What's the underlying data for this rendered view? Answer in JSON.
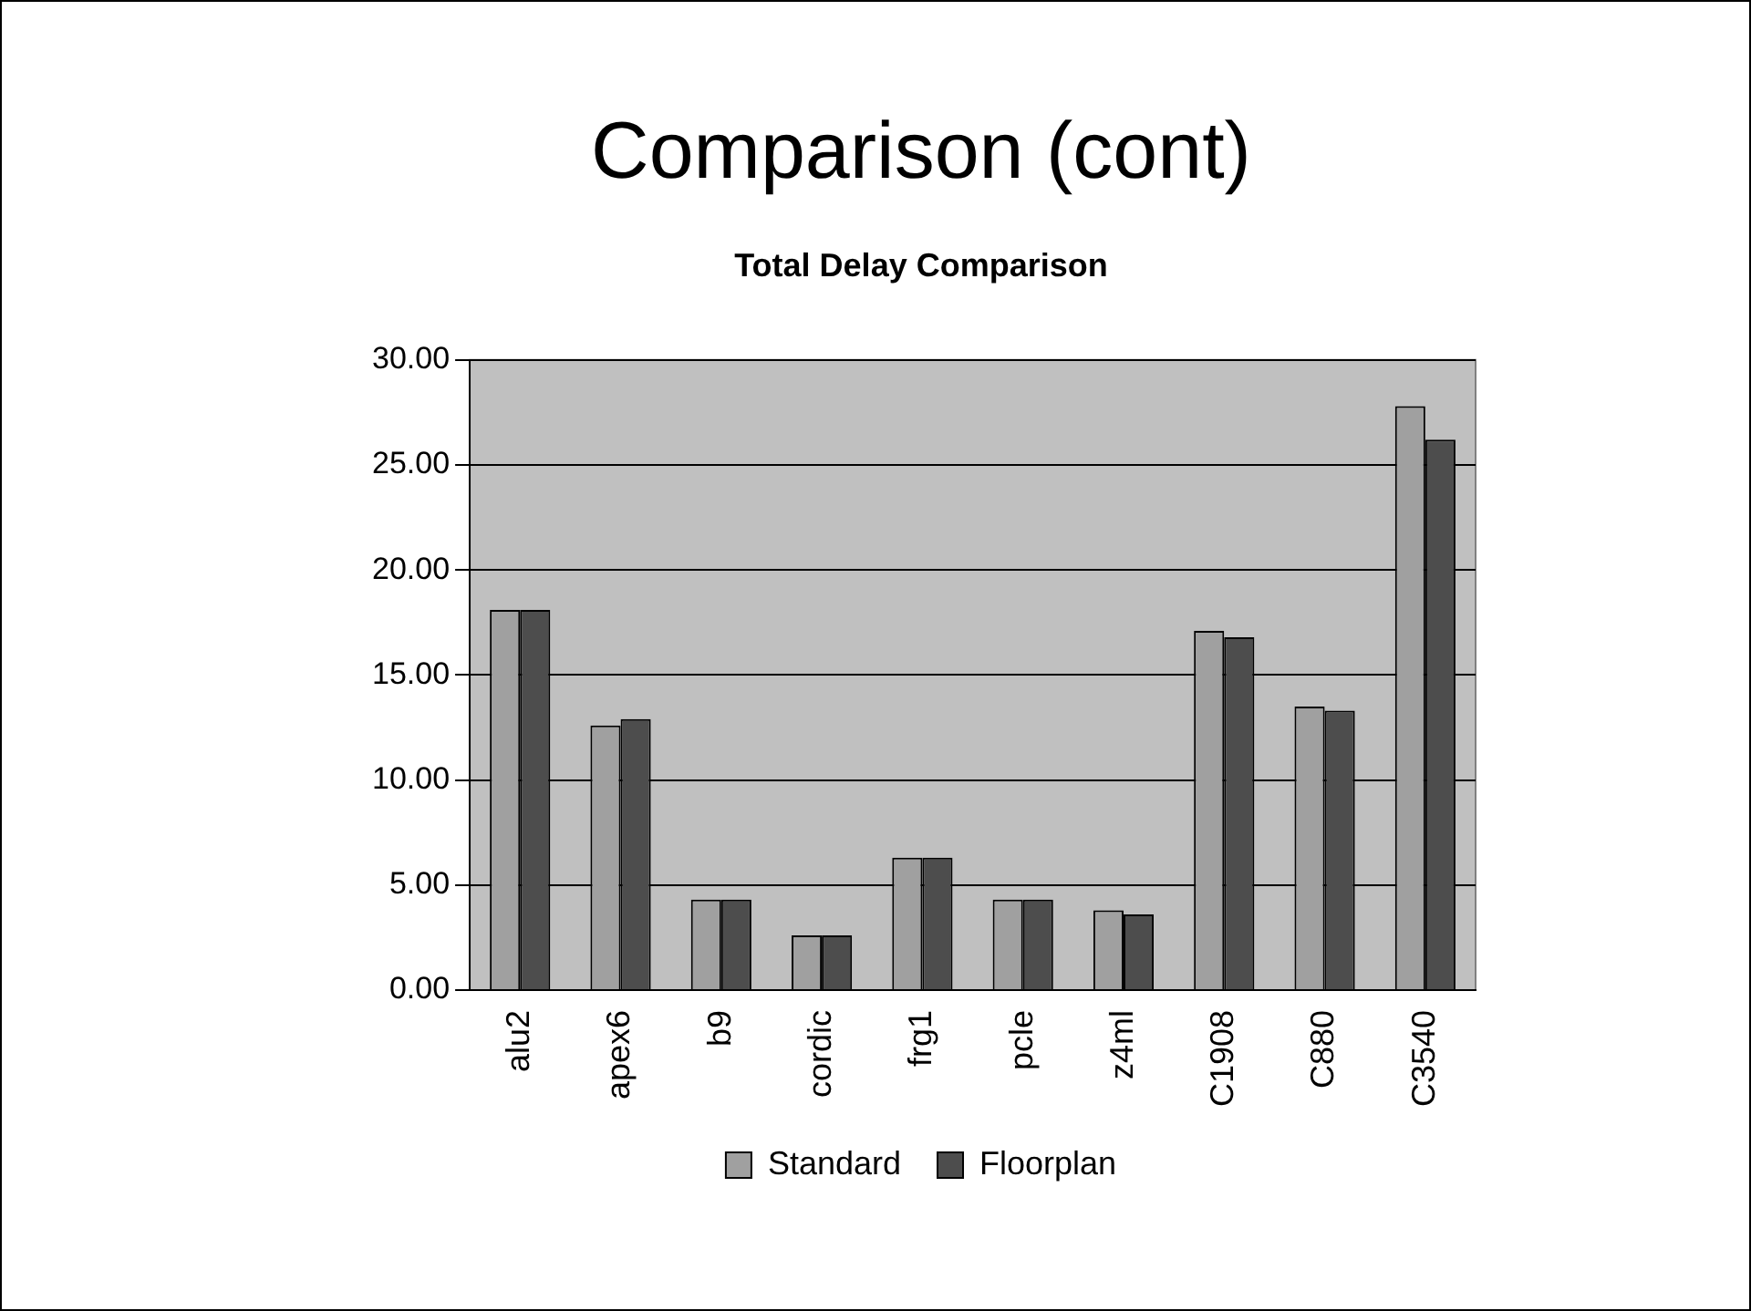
{
  "chart_data": {
    "type": "bar",
    "title": "Comparison (cont)",
    "subtitle": "Total Delay Comparison",
    "categories": [
      "alu2",
      "apex6",
      "b9",
      "cordic",
      "frg1",
      "pcle",
      "z4ml",
      "C1908",
      "C880",
      "C3540"
    ],
    "series": [
      {
        "name": "Standard",
        "color": "#a0a0a0",
        "values": [
          18.1,
          12.6,
          4.3,
          2.6,
          6.3,
          4.3,
          3.8,
          17.1,
          13.5,
          27.8
        ]
      },
      {
        "name": "Floorplan",
        "color": "#4d4d4d",
        "values": [
          18.1,
          12.9,
          4.3,
          2.6,
          6.3,
          4.3,
          3.6,
          16.8,
          13.3,
          26.2
        ]
      }
    ],
    "ylim": [
      0,
      30
    ],
    "yticks": [
      {
        "value": 0,
        "label": "0.00"
      },
      {
        "value": 5,
        "label": "5.00"
      },
      {
        "value": 10,
        "label": "10.00"
      },
      {
        "value": 15,
        "label": "15.00"
      },
      {
        "value": 20,
        "label": "20.00"
      },
      {
        "value": 25,
        "label": "25.00"
      },
      {
        "value": 30,
        "label": "30.00"
      }
    ],
    "grid": "y",
    "legend": "bottom"
  }
}
